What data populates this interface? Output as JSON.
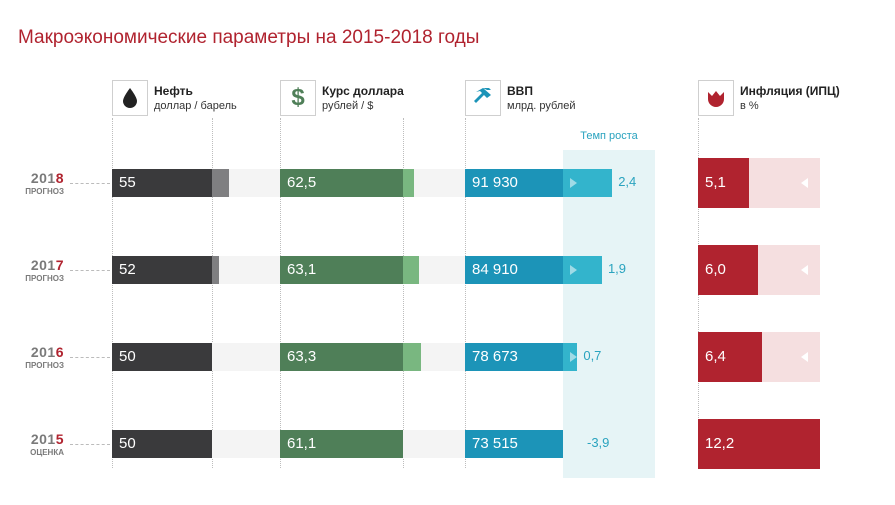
{
  "title": "Макроэкономические параметры на 2015-2018 годы",
  "columns": {
    "oil": {
      "label": "Нефть",
      "unit": "доллар / барель",
      "icon": "oil-drop-icon"
    },
    "usd": {
      "label": "Курс доллара",
      "unit": "рублей / $",
      "icon": "dollar-icon"
    },
    "gdp": {
      "label": "ВВП",
      "unit": "млрд. рублей",
      "icon": "hammer-icon"
    },
    "infl": {
      "label": "Инфляция (ИПЦ)",
      "unit": "в %",
      "icon": "tulip-icon"
    }
  },
  "growth_header": "Темп роста",
  "colors": {
    "title": "#b0232f",
    "oil": "#3a3a3c",
    "oil_ext": "#7f7f81",
    "usd": "#4f7f58",
    "usd_ext": "#79b780",
    "gdp": "#1c94b8",
    "gdp_ext": "#33b4cc",
    "infl": "#b0232f",
    "infl_track": "#f5dfe0",
    "track": "#f4f4f4"
  },
  "chart_data": {
    "type": "bar",
    "categories": [
      "2018",
      "2017",
      "2016",
      "2015"
    ],
    "status": [
      "ПРОГНОЗ",
      "ПРОГНОЗ",
      "ПРОГНОЗ",
      "ОЦЕНКА"
    ],
    "series": [
      {
        "name": "Нефть",
        "values": [
          55,
          52,
          50,
          50
        ],
        "labels": [
          "55",
          "52",
          "50",
          "50"
        ]
      },
      {
        "name": "Курс доллара",
        "values": [
          62.5,
          63.1,
          63.3,
          61.1
        ],
        "labels": [
          "62,5",
          "63,1",
          "63,3",
          "61,1"
        ]
      },
      {
        "name": "ВВП",
        "values": [
          91930,
          84910,
          78673,
          73515
        ],
        "labels": [
          "91 930",
          "84 910",
          "78 673",
          "73 515"
        ]
      },
      {
        "name": "Темп роста",
        "values": [
          2.4,
          1.9,
          0.7,
          -3.9
        ],
        "labels": [
          "2,4",
          "1,9",
          "0,7",
          "-3,9"
        ]
      },
      {
        "name": "Инфляция (ИПЦ)",
        "values": [
          5.1,
          6.0,
          6.4,
          12.2
        ],
        "labels": [
          "5,1",
          "6,0",
          "6,4",
          "12,2"
        ]
      }
    ]
  }
}
